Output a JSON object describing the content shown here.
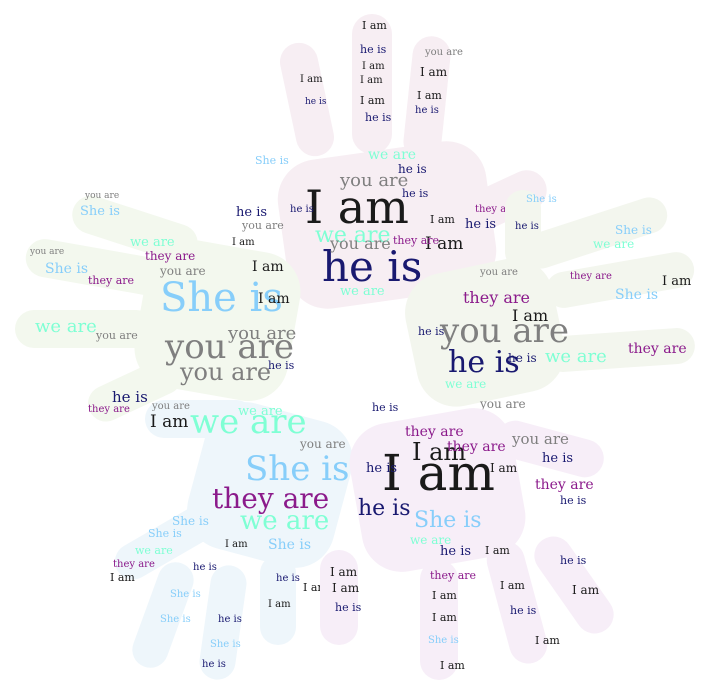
{
  "phrases": {
    "i_am": "I am",
    "you_are": "you are",
    "he_is": "he is",
    "she_is": "She is",
    "they_are": "they are",
    "we_are": "we are"
  },
  "colors": {
    "i_am": "#1a1a1a",
    "you_are": "#7f7f7f",
    "he_is": "#191970",
    "she_is": "#87cefa",
    "they_are": "#8b1a8b",
    "we_are": "#7fffd4",
    "hand_tint_top": "#f7eef3",
    "hand_tint_left": "#f3f8ee",
    "hand_tint_right": "#f3f6ee",
    "hand_tint_bottom_left": "#eef6fb",
    "hand_tint_bottom_right": "#f7eef8"
  },
  "icon": "word-cloud-hands"
}
